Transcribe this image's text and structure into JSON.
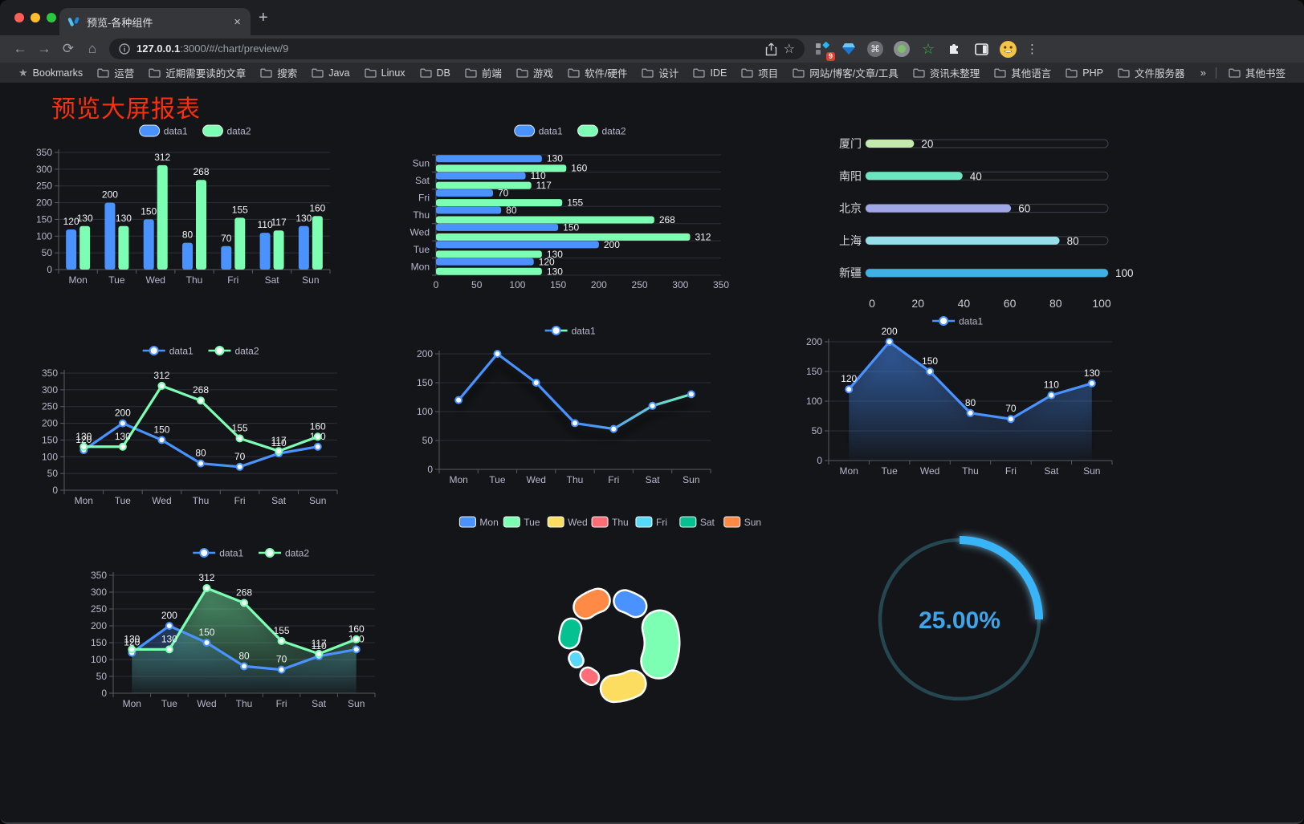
{
  "browser": {
    "traffic_lights": {
      "close": "#ff5f57",
      "minimize": "#febc2e",
      "zoom": "#28c840"
    },
    "tab": {
      "title": "预览-各种组件"
    },
    "url": {
      "host": "127.0.0.1",
      "rest": ":3000/#/chart/preview/9"
    },
    "extension_badge": "9",
    "glyphs": {
      "back": "←",
      "forward": "→",
      "reload": "⟳",
      "home": "⌂",
      "star": "☆",
      "command": "⌘",
      "ext_star": "☆",
      "kebab": "⋮",
      "plus": "+",
      "close": "×",
      "overflow": "»"
    },
    "bookmarks_bar": {
      "label": "Bookmarks",
      "folders": [
        "运营",
        "近期需要读的文章",
        "搜索",
        "Java",
        "Linux",
        "DB",
        "前端",
        "游戏",
        "软件/硬件",
        "设计",
        "IDE",
        "项目",
        "网站/博客/文章/工具",
        "资讯未整理",
        "其他语言",
        "PHP",
        "文件服务器"
      ],
      "overflow": "»",
      "other": "其他书签"
    }
  },
  "page": {
    "title": "预览大屏报表",
    "title_color": "#f92f0e"
  },
  "theme": {
    "page_bg": "#141518",
    "axis_text": "#b9b8ce",
    "split_line": "#2e3038",
    "axis_line": "#585a62",
    "value_label": "#f2f3f5",
    "legend_text": "#b9b8ce"
  },
  "chart_data": [
    {
      "id": "bar-vertical",
      "type": "bar",
      "categories": [
        "Mon",
        "Tue",
        "Wed",
        "Thu",
        "Fri",
        "Sat",
        "Sun"
      ],
      "series": [
        {
          "name": "data1",
          "color": "#4992ff",
          "values": [
            120,
            200,
            150,
            80,
            70,
            110,
            130
          ]
        },
        {
          "name": "data2",
          "color": "#7cffb2",
          "values": [
            130,
            130,
            312,
            268,
            155,
            117,
            160
          ]
        }
      ],
      "ylim": [
        0,
        350
      ],
      "ytick_step": 50,
      "legend_position": "top",
      "grid": true,
      "show_labels": true
    },
    {
      "id": "bar-horizontal",
      "type": "bar-horizontal",
      "categories": [
        "Mon",
        "Tue",
        "Wed",
        "Thu",
        "Fri",
        "Sat",
        "Sun"
      ],
      "display_top_to_bottom": [
        "Sun",
        "Sat",
        "Fri",
        "Thu",
        "Wed",
        "Tue",
        "Mon"
      ],
      "series": [
        {
          "name": "data1",
          "color": "#4992ff",
          "values": [
            120,
            200,
            150,
            80,
            70,
            110,
            130
          ]
        },
        {
          "name": "data2",
          "color": "#7cffb2",
          "values": [
            130,
            130,
            312,
            268,
            155,
            117,
            160
          ]
        }
      ],
      "xlim": [
        0,
        350
      ],
      "xtick_step": 50,
      "legend_position": "top",
      "grid": true,
      "show_labels": true
    },
    {
      "id": "city-progress",
      "type": "progress-bars",
      "max": 100,
      "xticks": [
        0,
        20,
        40,
        60,
        80,
        100
      ],
      "items": [
        {
          "label": "厦门",
          "value": 20,
          "color": "#c4ebad"
        },
        {
          "label": "南阳",
          "value": 40,
          "color": "#6be6c1"
        },
        {
          "label": "北京",
          "value": 60,
          "color": "#a0a7e6"
        },
        {
          "label": "上海",
          "value": 80,
          "color": "#96dee8"
        },
        {
          "label": "新疆",
          "value": 100,
          "color": "#3fb1e3"
        }
      ]
    },
    {
      "id": "line-two",
      "type": "line",
      "categories": [
        "Mon",
        "Tue",
        "Wed",
        "Thu",
        "Fri",
        "Sat",
        "Sun"
      ],
      "series": [
        {
          "name": "data1",
          "color": "#4992ff",
          "values": [
            120,
            200,
            150,
            80,
            70,
            110,
            130
          ]
        },
        {
          "name": "data2",
          "color": "#7cffb2",
          "values": [
            130,
            130,
            312,
            268,
            155,
            117,
            160
          ]
        }
      ],
      "ylim": [
        0,
        350
      ],
      "ytick_step": 50,
      "legend_position": "top",
      "show_labels": true
    },
    {
      "id": "line-gradient",
      "type": "line",
      "categories": [
        "Mon",
        "Tue",
        "Wed",
        "Thu",
        "Fri",
        "Sat",
        "Sun"
      ],
      "series": [
        {
          "name": "data1",
          "color": "#4992ff",
          "gradient_to": "#7cffb2",
          "values": [
            120,
            200,
            150,
            80,
            70,
            110,
            130
          ]
        }
      ],
      "ylim": [
        0,
        200
      ],
      "ytick_step": 50,
      "legend_position": "top",
      "show_labels": false,
      "shadow": true
    },
    {
      "id": "area-single",
      "type": "area",
      "categories": [
        "Mon",
        "Tue",
        "Wed",
        "Thu",
        "Fri",
        "Sat",
        "Sun"
      ],
      "series": [
        {
          "name": "data1",
          "color": "#4992ff",
          "values": [
            120,
            200,
            150,
            80,
            70,
            110,
            130
          ]
        }
      ],
      "ylim": [
        0,
        200
      ],
      "ytick_step": 50,
      "legend_position": "top",
      "show_labels": true,
      "shadow": true
    },
    {
      "id": "area-two",
      "type": "area",
      "categories": [
        "Mon",
        "Tue",
        "Wed",
        "Thu",
        "Fri",
        "Sat",
        "Sun"
      ],
      "series": [
        {
          "name": "data1",
          "color": "#4992ff",
          "values": [
            120,
            200,
            150,
            80,
            70,
            110,
            130
          ]
        },
        {
          "name": "data2",
          "color": "#7cffb2",
          "values": [
            130,
            130,
            312,
            268,
            155,
            117,
            160
          ]
        }
      ],
      "ylim": [
        0,
        350
      ],
      "ytick_step": 50,
      "legend_position": "top",
      "show_labels": true,
      "shadow": true
    },
    {
      "id": "donut-rose",
      "type": "pie",
      "rose": true,
      "inner_radius": 42,
      "outer_radius_max": 83,
      "legend_position": "top",
      "items": [
        {
          "label": "Mon",
          "value": 120,
          "color": "#4992ff"
        },
        {
          "label": "Tue",
          "value": 200,
          "color": "#7cffb2"
        },
        {
          "label": "Wed",
          "value": 150,
          "color": "#fddd60"
        },
        {
          "label": "Thu",
          "value": 80,
          "color": "#ff6e76"
        },
        {
          "label": "Fri",
          "value": 70,
          "color": "#58d9f9"
        },
        {
          "label": "Sat",
          "value": 110,
          "color": "#05c091"
        },
        {
          "label": "Sun",
          "value": 130,
          "color": "#ff8a45"
        }
      ]
    },
    {
      "id": "ring-progress",
      "type": "ring-progress",
      "value_text": "25.00%",
      "percent": 25,
      "color": "#38b5f9",
      "track_color": "#254751",
      "text_color": "#3fa5ea"
    }
  ]
}
